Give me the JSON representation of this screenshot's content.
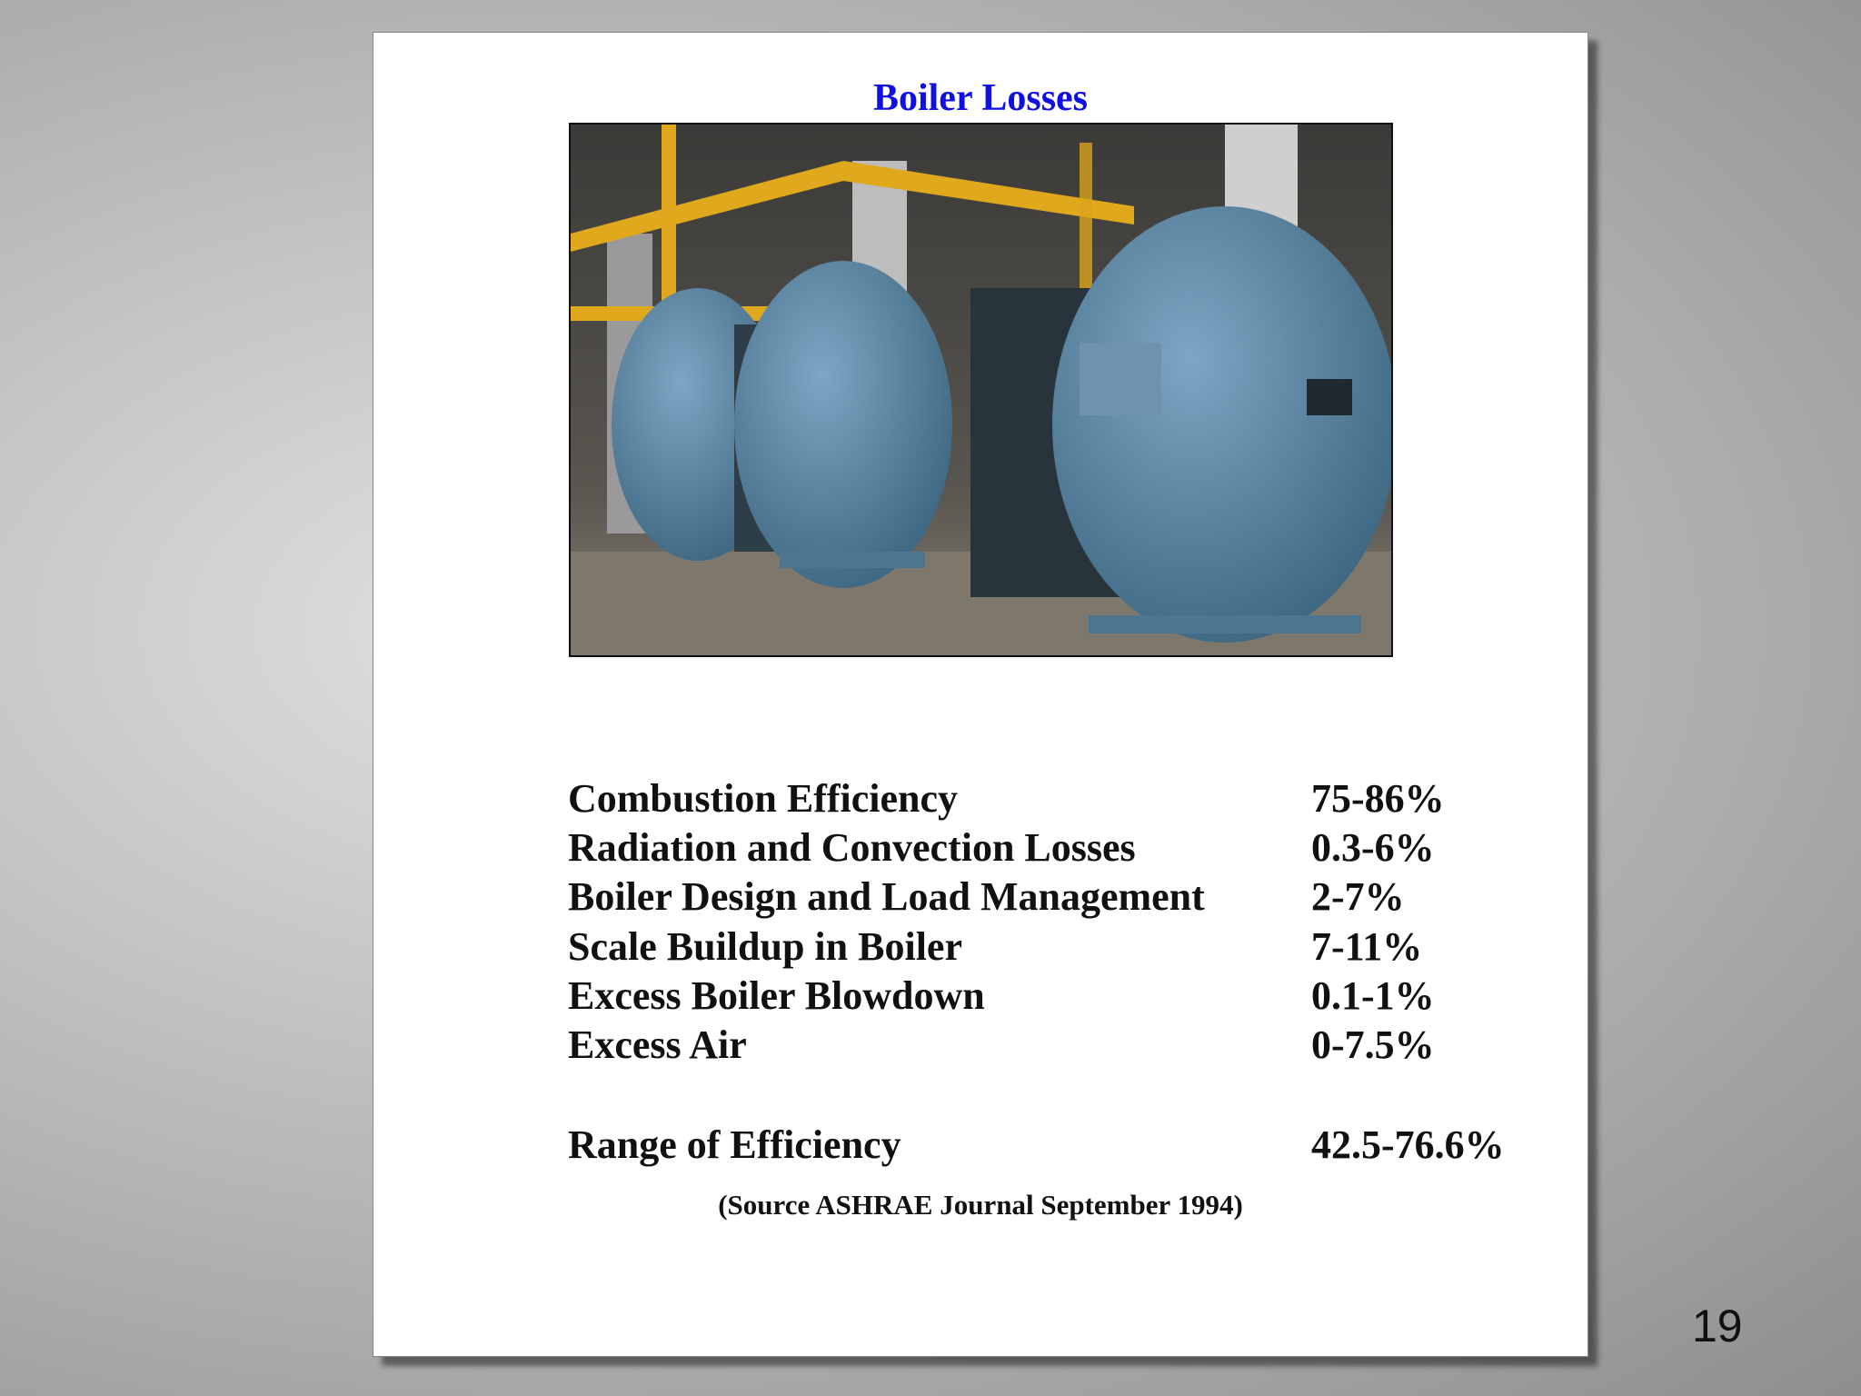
{
  "title": "Boiler Losses",
  "rows": [
    {
      "label": "Combustion Efficiency",
      "value": "75-86%"
    },
    {
      "label": "Radiation and Convection Losses",
      "value": "0.3-6%"
    },
    {
      "label": "Boiler Design and Load Management",
      "value": "2-7%"
    },
    {
      "label": "Scale Buildup in Boiler",
      "value": "7-11%"
    },
    {
      "label": "Excess Boiler Blowdown",
      "value": "0.1-1%"
    },
    {
      "label": "Excess Air",
      "value": "0-7.5%"
    }
  ],
  "total": {
    "label": "Range of Efficiency",
    "value": "42.5-76.6%"
  },
  "source": "(Source ASHRAE Journal September 1994)",
  "page_number": "19"
}
